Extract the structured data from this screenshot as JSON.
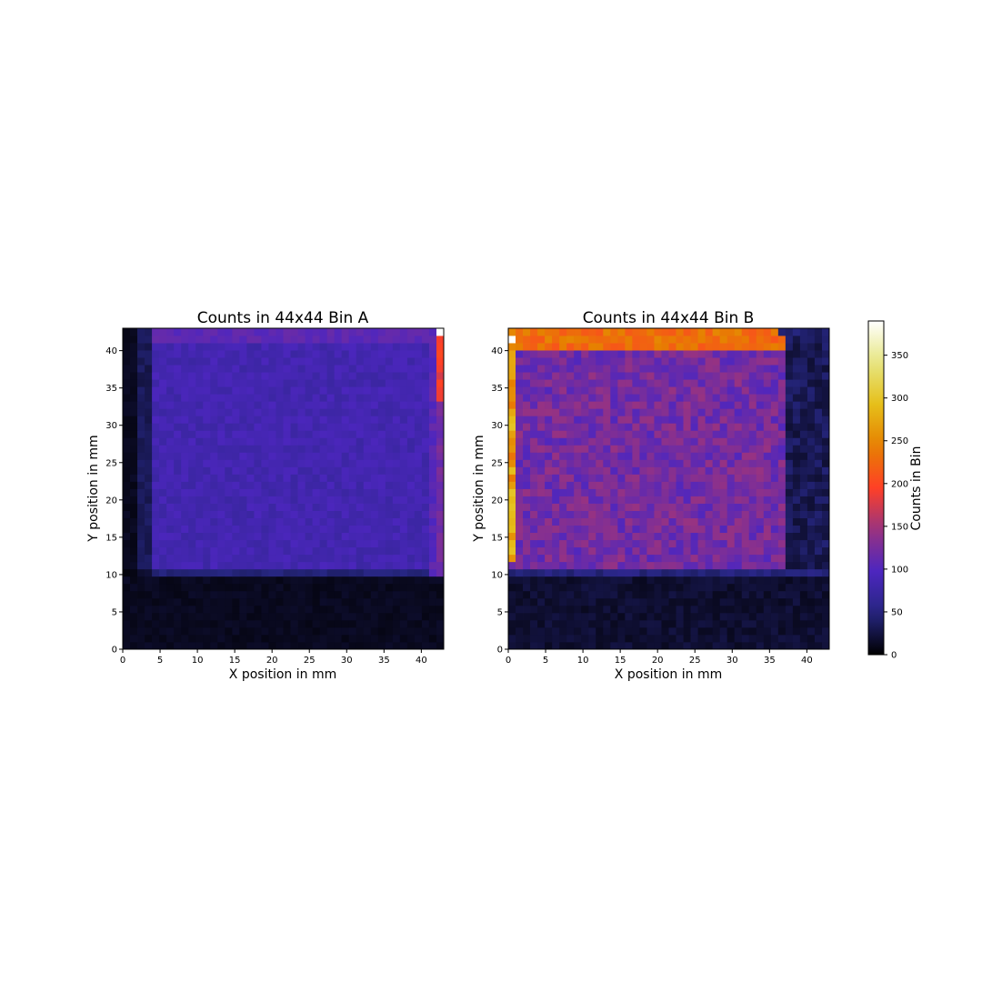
{
  "chart_data": [
    {
      "type": "heatmap",
      "title": "Counts in 44x44 Bin A",
      "xlabel": "X position in mm",
      "ylabel": "Y position in mm",
      "xlim": [
        0,
        43
      ],
      "ylim": [
        0,
        43
      ],
      "bins": [
        44,
        44
      ],
      "xticks": [
        0,
        5,
        10,
        15,
        20,
        25,
        30,
        35,
        40
      ],
      "yticks": [
        0,
        5,
        10,
        15,
        20,
        25,
        30,
        35,
        40
      ],
      "colormap": "CMRmap",
      "description_profile": {
        "background_level": 8,
        "body_level": 80,
        "body_x_range": [
          3,
          41
        ],
        "body_y_range": [
          10,
          43
        ],
        "top_row_level": 100,
        "right_edge_column_level": [
          110,
          210
        ],
        "max_cell": {
          "x": 43,
          "y": 42,
          "value": 390
        }
      }
    },
    {
      "type": "heatmap",
      "title": "Counts in 44x44 Bin B",
      "xlabel": "X position in mm",
      "ylabel": "Y position in mm",
      "xlim": [
        0,
        43
      ],
      "ylim": [
        0,
        43
      ],
      "bins": [
        44,
        44
      ],
      "xticks": [
        0,
        5,
        10,
        15,
        20,
        25,
        30,
        35,
        40
      ],
      "yticks": [
        0,
        5,
        10,
        15,
        20,
        25,
        30,
        35,
        40
      ],
      "colormap": "CMRmap",
      "description_profile": {
        "background_level": 12,
        "body_level": 120,
        "body_x_range": [
          1,
          38
        ],
        "body_y_range": [
          10,
          42
        ],
        "top_rows_level": 210,
        "left_edge_column_level": [
          220,
          300
        ],
        "max_cell": {
          "x": 0,
          "y": 42,
          "value": 390
        }
      }
    }
  ],
  "colorbar": {
    "label": "Counts in Bin",
    "vmin": 0,
    "vmax": 390,
    "ticks": [
      0,
      50,
      100,
      150,
      200,
      250,
      300,
      350
    ]
  }
}
